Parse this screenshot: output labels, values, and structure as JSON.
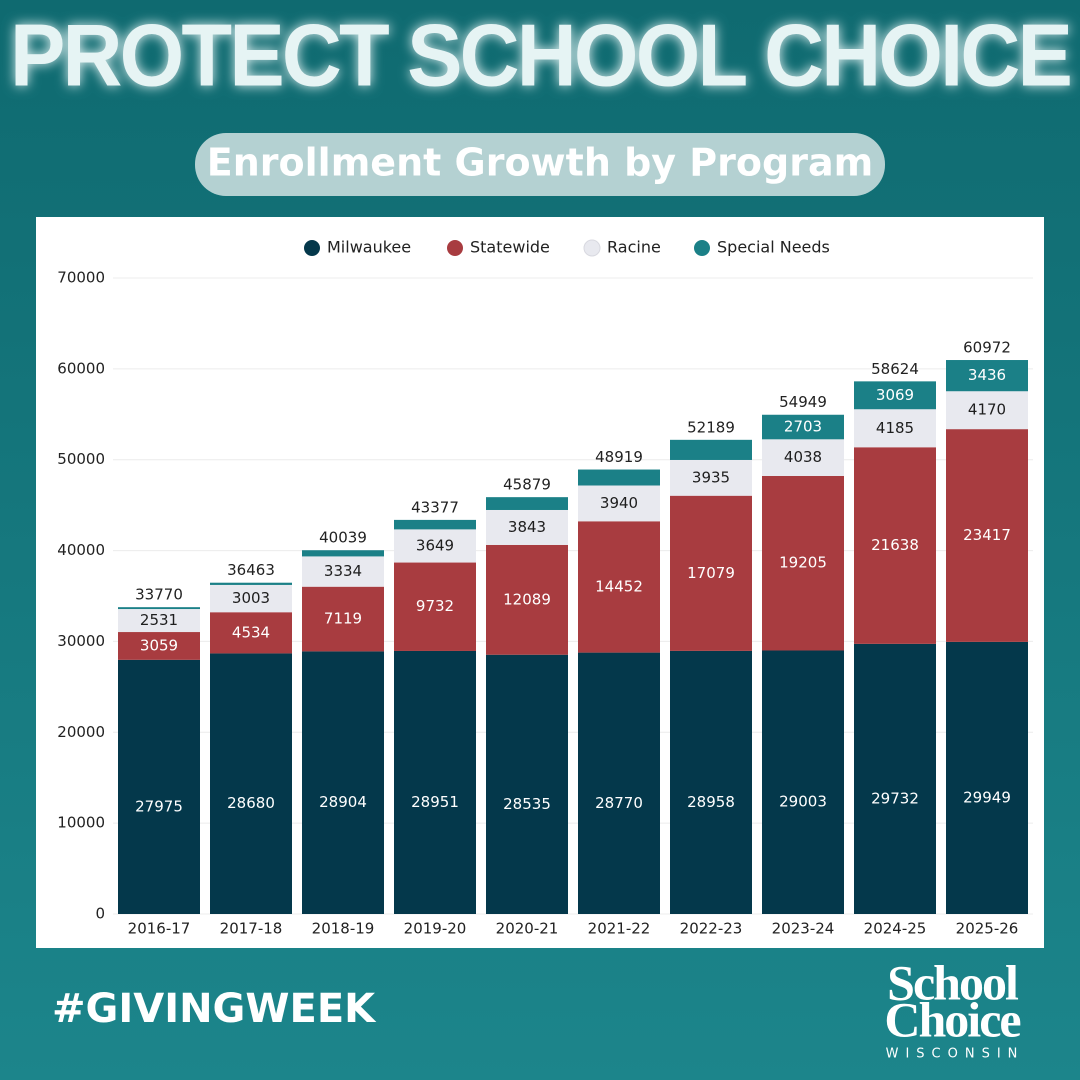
{
  "header": {
    "title": "PROTECT SCHOOL CHOICE",
    "subtitle": "Enrollment Growth by Program"
  },
  "chart_data": {
    "type": "stacked_bar",
    "categories": [
      "2016-17",
      "2017-18",
      "2018-19",
      "2019-20",
      "2020-21",
      "2021-22",
      "2022-23",
      "2023-24",
      "2024-25",
      "2025-26"
    ],
    "series": [
      {
        "name": "Milwaukee",
        "color": "#04384b",
        "label_color": "#ffffff",
        "values": [
          27975,
          28680,
          28904,
          28951,
          28535,
          28770,
          28958,
          29003,
          29732,
          29949
        ]
      },
      {
        "name": "Statewide",
        "color": "#a83c40",
        "label_color": "#ffffff",
        "values": [
          3059,
          4534,
          7119,
          9732,
          12089,
          14452,
          17079,
          19205,
          21638,
          23417
        ]
      },
      {
        "name": "Racine",
        "color": "#e8e9ef",
        "label_color": "#1e1e1e",
        "values": [
          2531,
          3003,
          3334,
          3649,
          3843,
          3940,
          3935,
          4038,
          4185,
          4170
        ]
      },
      {
        "name": "Special Needs",
        "color": "#1b8087",
        "label_color": "#ffffff",
        "values": [
          205,
          246,
          682,
          1045,
          1412,
          1757,
          2217,
          2703,
          3069,
          3436
        ]
      }
    ],
    "totals": [
      33770,
      36463,
      40039,
      43377,
      45879,
      48919,
      52189,
      54949,
      58624,
      60972
    ],
    "ylim": [
      0,
      70000
    ],
    "yticks": [
      0,
      10000,
      20000,
      30000,
      40000,
      50000,
      60000,
      70000
    ],
    "grid": true,
    "legend": "top"
  },
  "footer": {
    "hashtag": "#GIVINGWEEK",
    "logo": {
      "line1": "School",
      "line2": "Choice",
      "line3": "WISCONSIN"
    }
  }
}
